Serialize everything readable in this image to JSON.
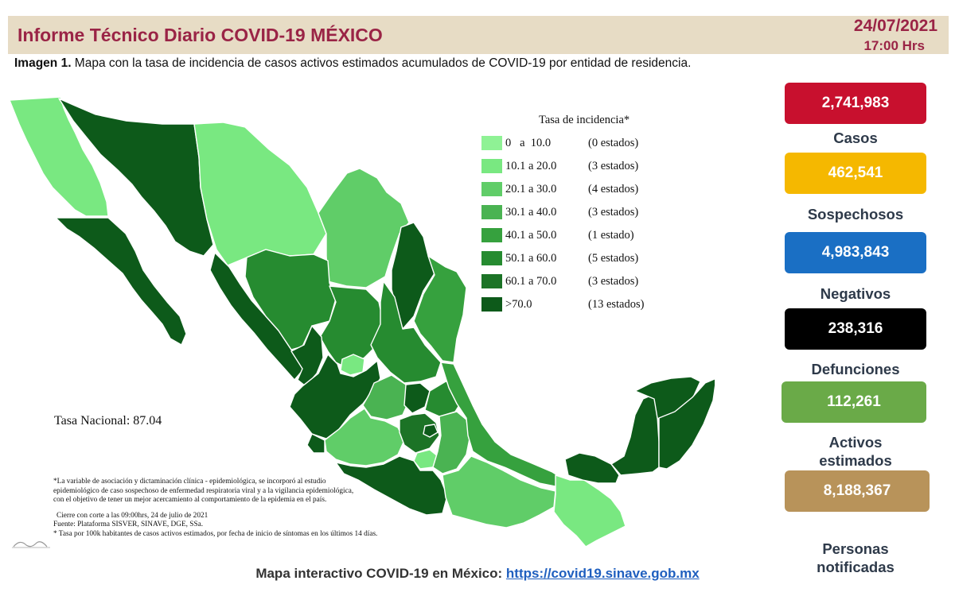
{
  "header": {
    "title": "Informe Técnico Diario COVID-19 MÉXICO",
    "date": "24/07/2021",
    "time": "17:00 Hrs"
  },
  "caption": {
    "label": "Imagen 1.",
    "text": " Mapa con la tasa de incidencia de casos activos estimados acumulados de COVID-19 por entidad de residencia."
  },
  "legend": {
    "title": "Tasa de incidencia*",
    "items": [
      {
        "range": "0   a  10.0",
        "count": "(0 estados)",
        "color": "#8ff295"
      },
      {
        "range": "10.1 a 20.0",
        "count": "(3 estados)",
        "color": "#79e881"
      },
      {
        "range": "20.1 a 30.0",
        "count": "(4 estados)",
        "color": "#60cd68"
      },
      {
        "range": "30.1 a 40.0",
        "count": "(3 estados)",
        "color": "#4ab352"
      },
      {
        "range": "40.1 a 50.0",
        "count": "(1 estado)",
        "color": "#36a13e"
      },
      {
        "range": "50.1 a 60.0",
        "count": "(5 estados)",
        "color": "#268b30"
      },
      {
        "range": "60.1 a 70.0",
        "count": "(3 estados)",
        "color": "#1c7326"
      },
      {
        "range": ">70.0",
        "count": "(13 estados)",
        "color": "#0d5a1a"
      }
    ]
  },
  "tasa_nacional": "Tasa Nacional: 87.04",
  "footnotes": {
    "note1_lines": [
      "*La variable de asociación y dictaminación clínica - epidemiológica, se incorporó al estudio",
      "epidemiológico de caso sospechoso de enfermedad respiratoria viral y a la vigilancia epidemiológica,",
      "con el objetivo de tener un mejor acercamiento al comportamiento de la epidemia en el país."
    ],
    "cierre": "Cierre con corte a las 09:00hrs, 24 de julio de 2021",
    "fuente": "Fuente: Plataforma SISVER, SINAVE, DGE, SSa.",
    "tasa_note": "* Tasa por 100k habitantes de casos activos estimados, por fecha de inicio de síntomas en los últimos 14 días."
  },
  "stats": [
    {
      "value": "2,741,983",
      "label": "Casos",
      "color": "#c8102e"
    },
    {
      "value": "462,541",
      "label": "Sospechosos",
      "color": "#f5b800"
    },
    {
      "value": "4,983,843",
      "label": "Negativos",
      "color": "#1a6fc4"
    },
    {
      "value": "238,316",
      "label": "Defunciones",
      "color": "#000000"
    },
    {
      "value": "112,261",
      "label": "Activos estimados",
      "color": "#6aaa48"
    },
    {
      "value": "8,188,367",
      "label": "Personas notificadas",
      "color": "#b8935a"
    }
  ],
  "footer": {
    "text": "Mapa interactivo COVID-19 en México: ",
    "link": "https://covid19.sinave.gob.mx"
  }
}
